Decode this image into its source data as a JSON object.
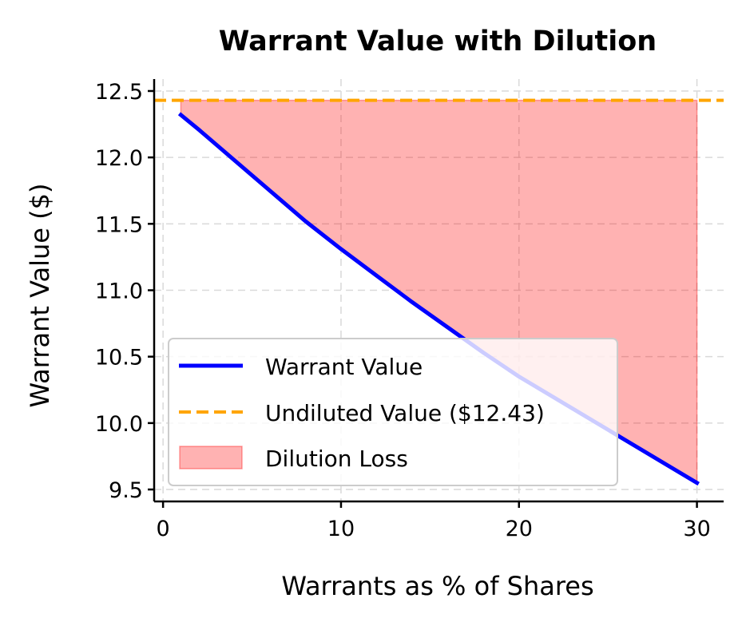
{
  "chart_data": {
    "type": "line",
    "title": "Warrant Value with Dilution",
    "xlabel": "Warrants as % of Shares",
    "ylabel": "Warrant Value ($)",
    "xlim": [
      -0.5,
      31.5
    ],
    "ylim": [
      9.41,
      12.59
    ],
    "xticks": [
      0,
      10,
      20,
      30
    ],
    "xtick_labels": [
      "0",
      "10",
      "20",
      "30"
    ],
    "yticks": [
      9.5,
      10.0,
      10.5,
      11.0,
      11.5,
      12.0,
      12.5
    ],
    "ytick_labels": [
      "9.5",
      "10.0",
      "10.5",
      "11.0",
      "11.5",
      "12.0",
      "12.5"
    ],
    "grid": true,
    "legend_position": "lower-left",
    "series": [
      {
        "name": "Warrant Value",
        "kind": "line",
        "color": "#0000ff",
        "x": [
          1,
          2,
          4,
          6,
          8,
          10,
          12,
          14,
          16,
          18,
          20,
          22,
          24,
          26,
          28,
          30
        ],
        "y": [
          12.32,
          12.21,
          11.98,
          11.75,
          11.52,
          11.31,
          11.11,
          10.91,
          10.72,
          10.53,
          10.35,
          10.19,
          10.03,
          9.87,
          9.71,
          9.55
        ]
      },
      {
        "name": "Undiluted Value ($12.43)",
        "kind": "hline",
        "color": "#ffa500",
        "y": 12.43
      },
      {
        "name": "Dilution Loss",
        "kind": "fill_between",
        "color": "#ff0000",
        "between": [
          "Warrant Value",
          "Undiluted Value ($12.43)"
        ]
      }
    ]
  }
}
